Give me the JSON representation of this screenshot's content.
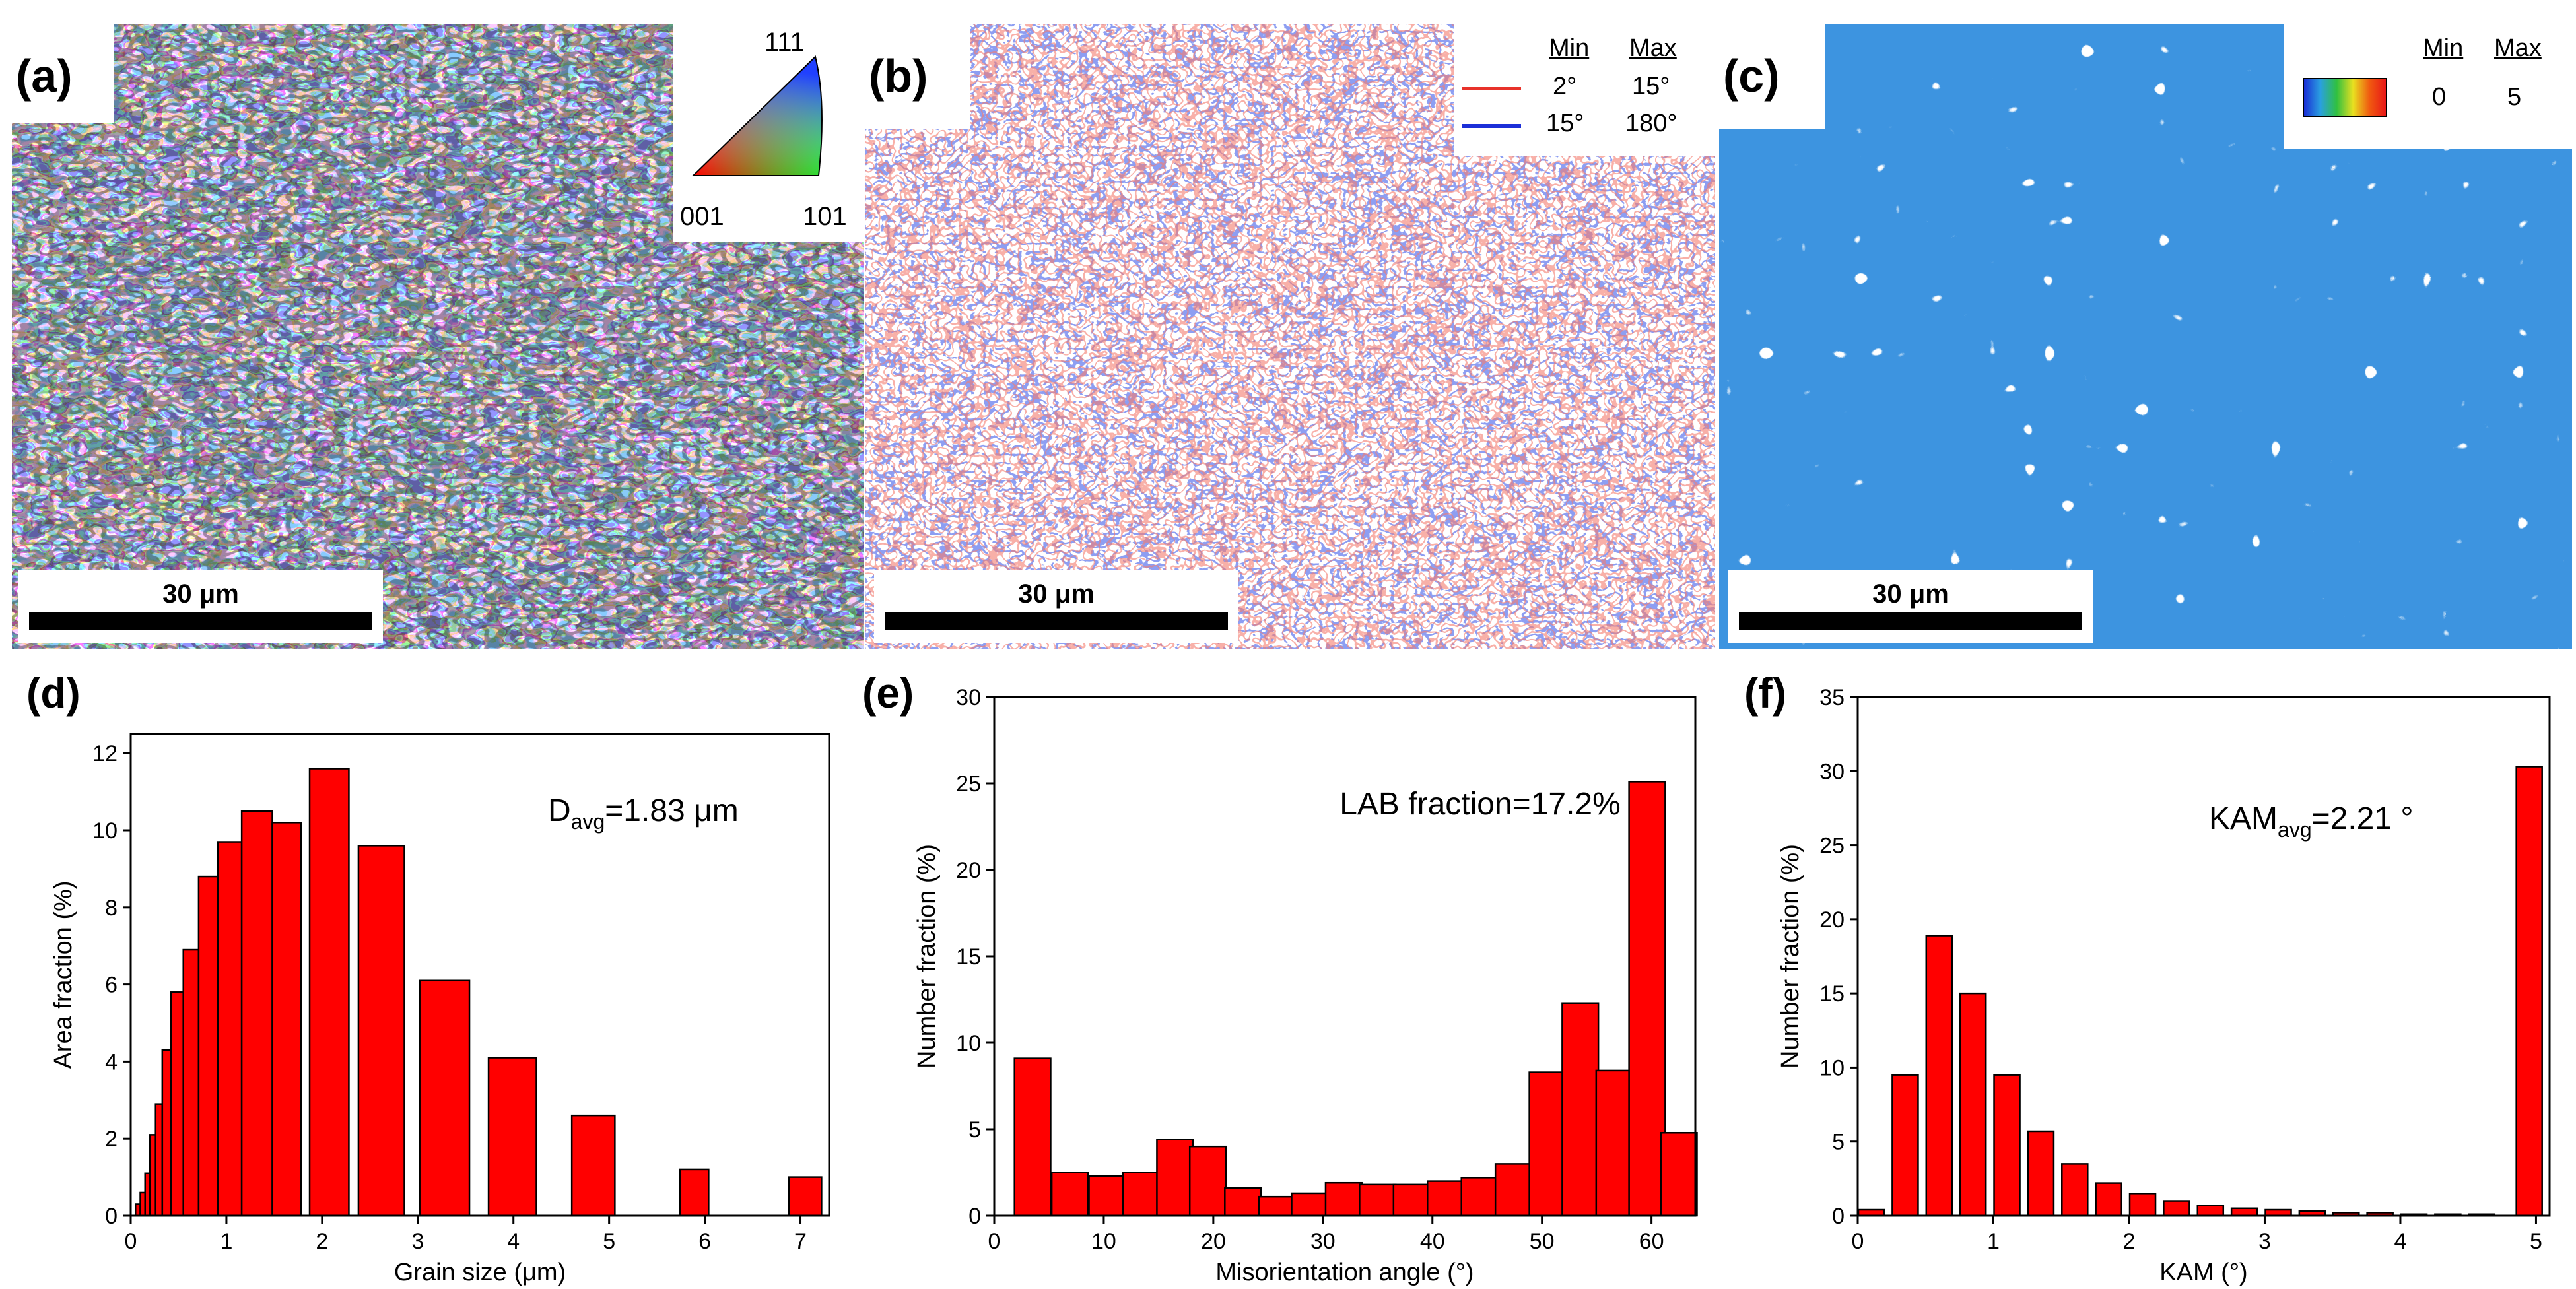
{
  "panels": {
    "a": {
      "label": "(a)",
      "scale": "30 μm",
      "ipf": {
        "top": "111",
        "left": "001",
        "right": "101"
      }
    },
    "b": {
      "label": "(b)",
      "scale": "30 μm",
      "legend": {
        "min_header": "Min",
        "max_header": "Max",
        "rows": [
          {
            "color": "#e8322a",
            "min": "2°",
            "max": "15°"
          },
          {
            "color": "#1c2fd8",
            "min": "15°",
            "max": "180°"
          }
        ]
      }
    },
    "c": {
      "label": "(c)",
      "scale": "30 μm",
      "legend": {
        "min_header": "Min",
        "max_header": "Max",
        "min": "0",
        "max": "5"
      }
    },
    "d": {
      "label": "(d)"
    },
    "e": {
      "label": "(e)"
    },
    "f": {
      "label": "(f)"
    }
  },
  "colors": {
    "bar_fill": "#ff0000",
    "bar_edge": "#000000",
    "lagb": "#e8322a",
    "hagb": "#1c2fd8"
  },
  "chart_data": [
    {
      "type": "bar",
      "panel": "d",
      "xlabel": "Grain size (μm)",
      "ylabel": "Area fraction (%)",
      "xlim": [
        0,
        7.3
      ],
      "ylim": [
        0,
        12.5
      ],
      "xticks": [
        0,
        1,
        2,
        3,
        4,
        5,
        6,
        7
      ],
      "yticks": [
        0,
        2,
        4,
        6,
        8,
        10,
        12
      ],
      "annotation": {
        "main": "D",
        "sub": "avg",
        "rest": "=1.83 μm"
      },
      "bars": [
        {
          "left": 0.05,
          "right": 0.1,
          "value": 0.3
        },
        {
          "left": 0.1,
          "right": 0.15,
          "value": 0.6
        },
        {
          "left": 0.15,
          "right": 0.2,
          "value": 1.1
        },
        {
          "left": 0.2,
          "right": 0.26,
          "value": 2.1
        },
        {
          "left": 0.26,
          "right": 0.33,
          "value": 2.9
        },
        {
          "left": 0.33,
          "right": 0.42,
          "value": 4.3
        },
        {
          "left": 0.42,
          "right": 0.55,
          "value": 5.8
        },
        {
          "left": 0.55,
          "right": 0.71,
          "value": 6.9
        },
        {
          "left": 0.71,
          "right": 0.91,
          "value": 8.8
        },
        {
          "left": 0.91,
          "right": 1.16,
          "value": 9.7
        },
        {
          "left": 1.16,
          "right": 1.48,
          "value": 10.5
        },
        {
          "left": 1.48,
          "right": 1.78,
          "value": 10.2
        },
        {
          "left": 1.87,
          "right": 2.28,
          "value": 11.6
        },
        {
          "left": 2.38,
          "right": 2.86,
          "value": 9.6
        },
        {
          "left": 3.02,
          "right": 3.54,
          "value": 6.1
        },
        {
          "left": 3.74,
          "right": 4.24,
          "value": 4.1
        },
        {
          "left": 4.61,
          "right": 5.06,
          "value": 2.6
        },
        {
          "left": 5.74,
          "right": 6.04,
          "value": 1.2
        },
        {
          "left": 6.88,
          "right": 7.22,
          "value": 1.0
        }
      ]
    },
    {
      "type": "bar",
      "panel": "e",
      "xlabel": "Misorientation angle (°)",
      "ylabel": "Number fraction (%)",
      "xlim": [
        0,
        64
      ],
      "ylim": [
        0,
        30
      ],
      "xticks": [
        0,
        10,
        20,
        30,
        40,
        50,
        60
      ],
      "yticks": [
        0,
        5,
        10,
        15,
        20,
        25,
        30
      ],
      "annotation": {
        "main": "LAB fraction=17.2%"
      },
      "bin_width": 3.3,
      "x": [
        3.5,
        6.9,
        10.3,
        13.4,
        16.5,
        19.5,
        22.7,
        25.8,
        28.8,
        31.9,
        35.0,
        38.1,
        41.2,
        44.3,
        47.4,
        50.5,
        53.5,
        56.6,
        59.6,
        62.5
      ],
      "values": [
        9.1,
        2.5,
        2.3,
        2.5,
        4.4,
        4.0,
        1.6,
        1.1,
        1.3,
        1.9,
        1.8,
        1.8,
        2.0,
        2.2,
        3.0,
        8.3,
        12.3,
        8.4,
        25.1,
        4.8
      ]
    },
    {
      "type": "bar",
      "panel": "f",
      "xlabel": "KAM (°)",
      "ylabel": "Number fraction (%)",
      "xlim": [
        0,
        5.1
      ],
      "ylim": [
        0,
        35
      ],
      "xticks": [
        0,
        1,
        2,
        3,
        4,
        5
      ],
      "yticks": [
        0,
        5,
        10,
        15,
        20,
        25,
        30,
        35
      ],
      "annotation": {
        "main": "KAM",
        "sub": "avg",
        "rest": "=2.21 °"
      },
      "bin_width": 0.19,
      "x": [
        0.1,
        0.35,
        0.6,
        0.85,
        1.1,
        1.35,
        1.6,
        1.85,
        2.1,
        2.35,
        2.6,
        2.85,
        3.1,
        3.35,
        3.6,
        3.85,
        4.1,
        4.35,
        4.6,
        4.95
      ],
      "values": [
        0.4,
        9.5,
        18.9,
        15.0,
        9.5,
        5.7,
        3.5,
        2.2,
        1.5,
        1.0,
        0.7,
        0.5,
        0.4,
        0.3,
        0.2,
        0.2,
        0.1,
        0.1,
        0.1,
        30.3
      ]
    }
  ]
}
